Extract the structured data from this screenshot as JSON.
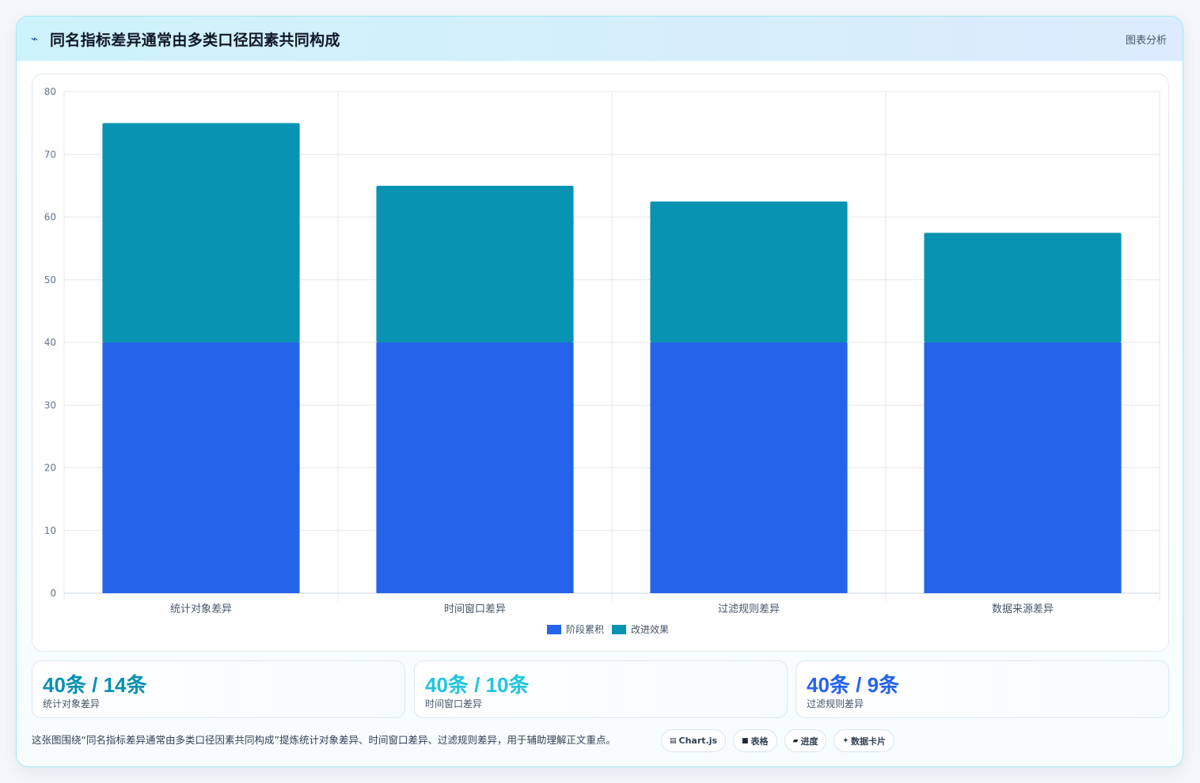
{
  "header": {
    "icon": "trend-line-icon",
    "icon_glyph": "⌁",
    "title": "同名指标差异通常由多类口径因素共同构成",
    "tag": "图表分析"
  },
  "chart_data": {
    "type": "bar",
    "stacked": true,
    "categories": [
      "统计对象差异",
      "时间窗口差异",
      "过滤规则差异",
      "数据来源差异"
    ],
    "series": [
      {
        "name": "阶段累积",
        "color": "#2563eb",
        "values": [
          40,
          40,
          40,
          40
        ]
      },
      {
        "name": "改进效果",
        "color": "#0893b3",
        "values": [
          35,
          25,
          22.5,
          17.5
        ]
      }
    ],
    "ylim": [
      0,
      80
    ],
    "yticks": [
      0,
      10,
      20,
      30,
      40,
      50,
      60,
      70,
      80
    ],
    "grid": true,
    "legend": "bottom"
  },
  "stats": [
    {
      "value": "40条 / 14条",
      "label": "统计对象差异",
      "color": "#0891b2"
    },
    {
      "value": "40条 / 10条",
      "label": "时间窗口差异",
      "color": "#22c5dd"
    },
    {
      "value": "40条 / 9条",
      "label": "过滤规则差异",
      "color": "#2563eb"
    }
  ],
  "footer": {
    "note": "这张图围绕“同名指标差异通常由多类口径因素共同构成”提炼统计对象差异、时间窗口差异、过滤规则差异，用于辅助理解正文重点。",
    "chips": [
      {
        "icon": "chart-icon",
        "glyph": "▤",
        "label": "Chart.js"
      },
      {
        "icon": "table-icon",
        "glyph": "■",
        "label": "表格"
      },
      {
        "icon": "progress-icon",
        "glyph": "▰",
        "label": "进度"
      },
      {
        "icon": "sparkle-icon",
        "glyph": "✦",
        "label": "数据卡片"
      }
    ]
  }
}
